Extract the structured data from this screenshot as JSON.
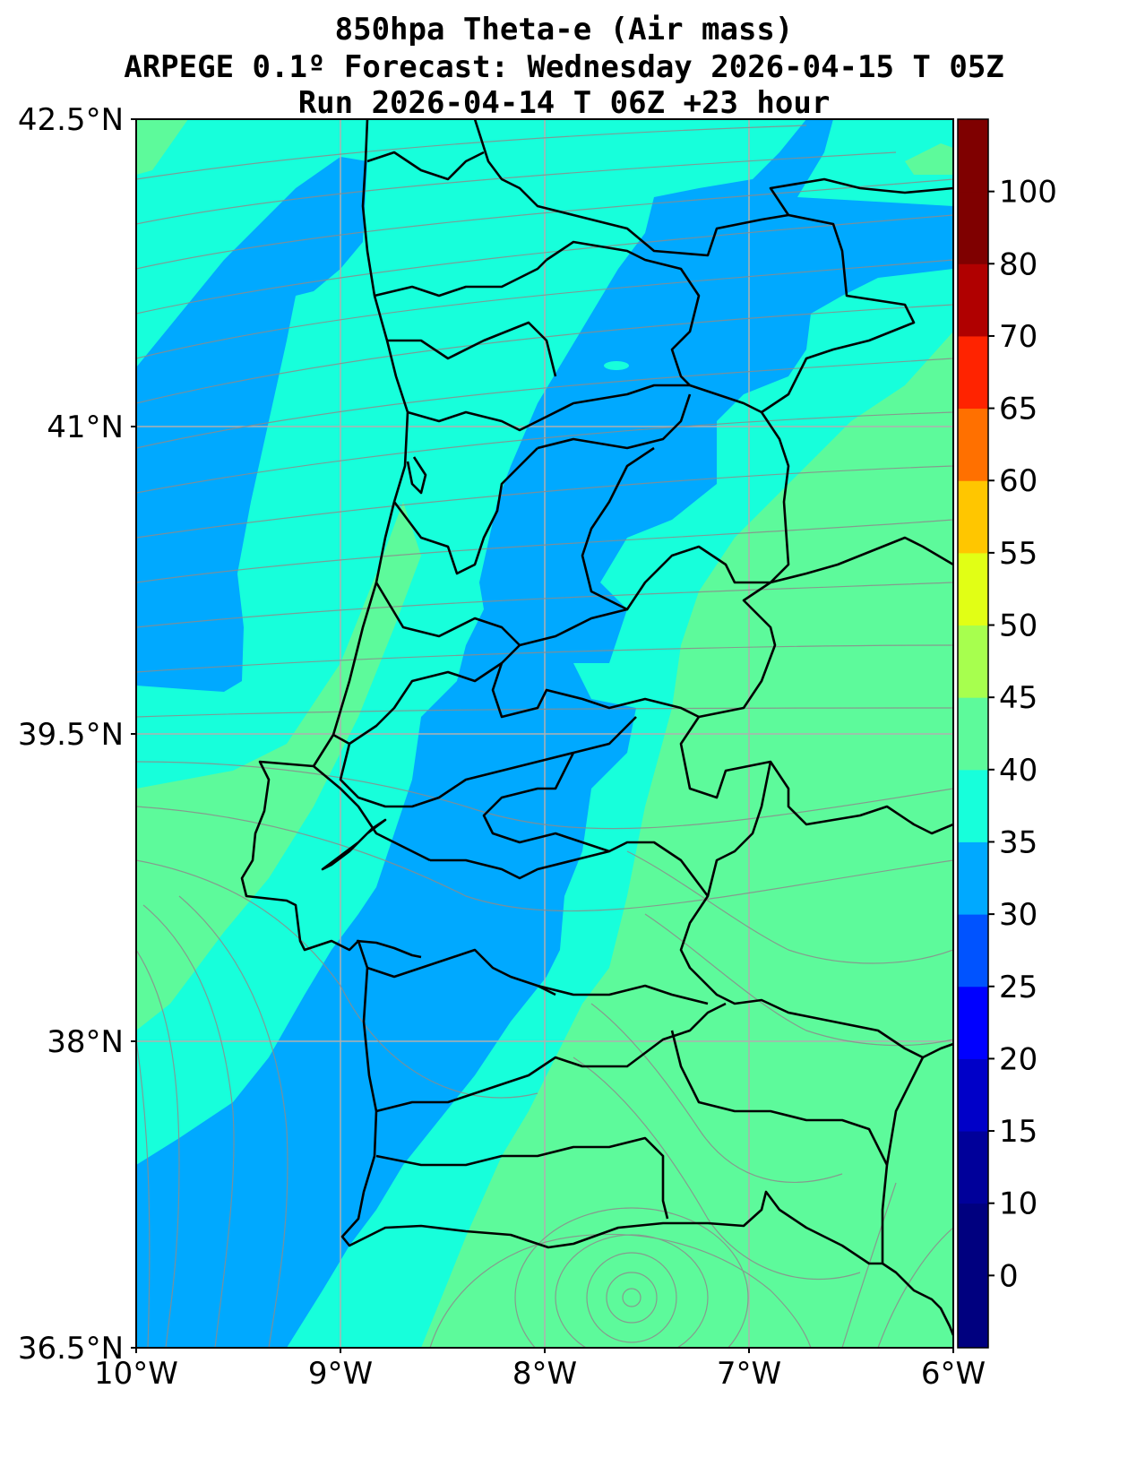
{
  "title": {
    "line1": "850hpa Theta-e (Air mass)",
    "line2": "ARPEGE 0.1º Forecast: Wednesday 2026-04-15 T 05Z",
    "line3": "Run 2026-04-14 T 06Z +23 hour"
  },
  "map": {
    "lat_range": [
      36.5,
      42.5
    ],
    "lon_range": [
      -10,
      -6
    ],
    "lat_ticks": [
      {
        "value": 42.5,
        "label": "42.5°N"
      },
      {
        "value": 41.0,
        "label": "41°N"
      },
      {
        "value": 39.5,
        "label": "39.5°N"
      },
      {
        "value": 38.0,
        "label": "38°N"
      },
      {
        "value": 36.5,
        "label": "36.5°N"
      }
    ],
    "lon_ticks": [
      {
        "value": -10,
        "label": "10°W"
      },
      {
        "value": -9,
        "label": "9°W"
      },
      {
        "value": -8,
        "label": "8°W"
      },
      {
        "value": -7,
        "label": "7°W"
      },
      {
        "value": -6,
        "label": "6°W"
      }
    ],
    "grid": true,
    "field_colors": {
      "band_25_30": "#00a9ff",
      "band_30_35": "#17ffdb",
      "band_35_40": "#5dfa9b"
    },
    "streamline_color": "#8c8c8c",
    "border_color": "#000000"
  },
  "colorbar": {
    "levels": [
      {
        "label": "0",
        "color": "#00007f"
      },
      {
        "label": "10",
        "color": "#00009a"
      },
      {
        "label": "15",
        "color": "#0000c8"
      },
      {
        "label": "20",
        "color": "#0000ff"
      },
      {
        "label": "25",
        "color": "#0053ff"
      },
      {
        "label": "30",
        "color": "#00a9ff"
      },
      {
        "label": "35",
        "color": "#17ffdb"
      },
      {
        "label": "40",
        "color": "#5dfa9b"
      },
      {
        "label": "45",
        "color": "#a7ff4e"
      },
      {
        "label": "50",
        "color": "#e1ff15"
      },
      {
        "label": "55",
        "color": "#ffc600"
      },
      {
        "label": "60",
        "color": "#ff7000"
      },
      {
        "label": "65",
        "color": "#ff2300"
      },
      {
        "label": "70",
        "color": "#b00000"
      },
      {
        "label": "80",
        "color": "#7f0000"
      },
      {
        "label": "100",
        "color": "#7f0000"
      }
    ]
  }
}
